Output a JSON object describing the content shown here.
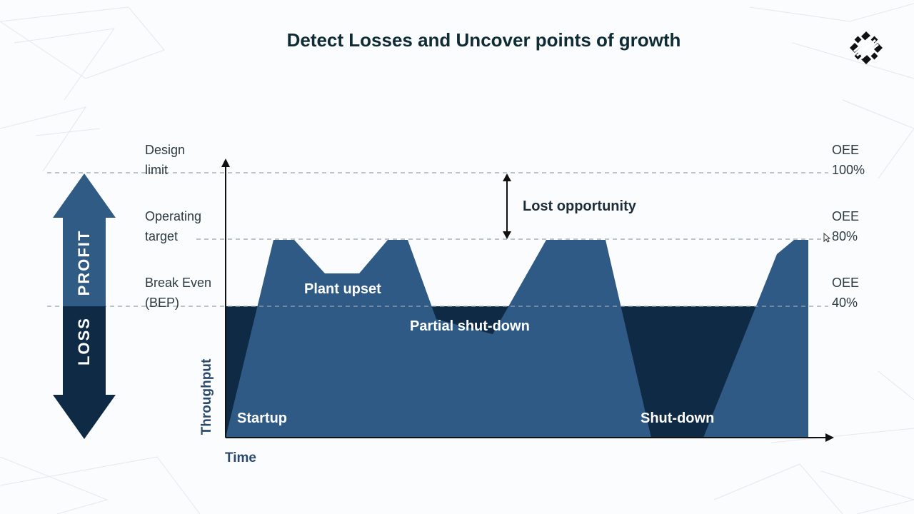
{
  "title": "Detect Losses and Uncover points of growth",
  "left_labels": {
    "design": [
      "Design",
      "limit"
    ],
    "operating": [
      "Operating",
      "target"
    ],
    "break_even": [
      "Break Even",
      "(BEP)"
    ]
  },
  "right_labels": {
    "oee100": [
      "OEE",
      "100%"
    ],
    "oee80": [
      "OEE",
      "80%"
    ],
    "oee40": [
      "OEE",
      "40%"
    ]
  },
  "arrow": {
    "profit": "PROFIT",
    "loss": "LOSS"
  },
  "annotations": {
    "lost_opportunity": "Lost opportunity",
    "plant_upset": "Plant upset",
    "partial_shutdown": "Partial shut-down",
    "startup": "Startup",
    "shutdown": "Shut-down"
  },
  "axes": {
    "y_label": "Throughput",
    "x_label": "Time"
  },
  "colors": {
    "profit_fill": "#2e5a85",
    "loss_fill": "#0f2a45",
    "profit_arrow": "#2f5b85",
    "loss_arrow": "#0f2a45",
    "dashed_line": "#9aa4ad",
    "title": "#0f2b36"
  }
}
